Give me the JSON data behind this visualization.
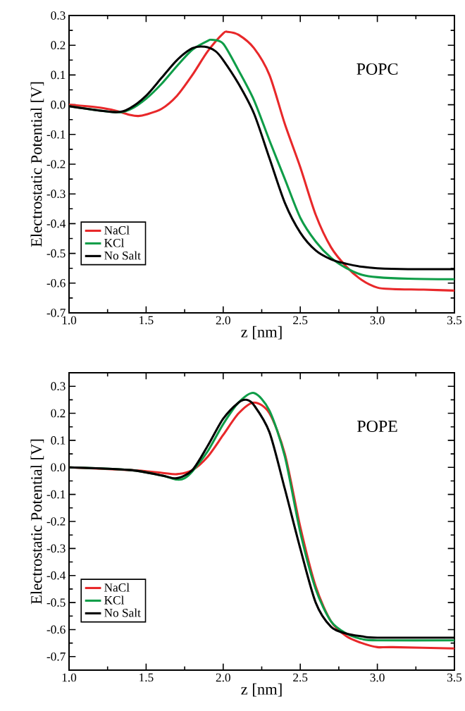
{
  "chart_data": [
    {
      "type": "line",
      "xlabel": "z [nm]",
      "ylabel": "Electrostatic Potential [V]",
      "annotations": [
        "POPC"
      ],
      "legend": "bottom left",
      "xlim": [
        1.0,
        3.5
      ],
      "ylim": [
        -0.7,
        0.3
      ],
      "xticks": [
        {
          "value": 1.0,
          "label": "1.0"
        },
        {
          "value": 1.5,
          "label": "1.5"
        },
        {
          "value": 2.0,
          "label": "2.0"
        },
        {
          "value": 2.5,
          "label": "2.5"
        },
        {
          "value": 3.0,
          "label": "3.0"
        },
        {
          "value": 3.5,
          "label": "3.5"
        }
      ],
      "yticks": [
        {
          "value": -0.7,
          "label": "-0.7"
        },
        {
          "value": -0.6,
          "label": "-0.6"
        },
        {
          "value": -0.5,
          "label": "-0.5"
        },
        {
          "value": -0.4,
          "label": "-0.4"
        },
        {
          "value": -0.3,
          "label": "-0.3"
        },
        {
          "value": -0.2,
          "label": "-0.2"
        },
        {
          "value": -0.1,
          "label": "-0.1"
        },
        {
          "value": 0.0,
          "label": "0.0"
        },
        {
          "value": 0.1,
          "label": "0.1"
        },
        {
          "value": 0.2,
          "label": "0.2"
        },
        {
          "value": 0.3,
          "label": "0.3"
        }
      ],
      "series": [
        {
          "name": "NaCl",
          "color": "#e8282a",
          "x": [
            1.0,
            1.2,
            1.3,
            1.4,
            1.45,
            1.5,
            1.6,
            1.7,
            1.8,
            1.9,
            2.0,
            2.03,
            2.1,
            2.2,
            2.3,
            2.4,
            2.5,
            2.6,
            2.7,
            2.8,
            2.9,
            3.0,
            3.1,
            3.3,
            3.5
          ],
          "values": [
            0.0,
            -0.01,
            -0.02,
            -0.035,
            -0.038,
            -0.033,
            -0.014,
            0.03,
            0.1,
            0.18,
            0.24,
            0.245,
            0.235,
            0.19,
            0.1,
            -0.065,
            -0.21,
            -0.37,
            -0.48,
            -0.545,
            -0.59,
            -0.615,
            -0.62,
            -0.622,
            -0.625
          ]
        },
        {
          "name": "KCl",
          "color": "#0f9d48",
          "x": [
            1.0,
            1.3,
            1.4,
            1.5,
            1.6,
            1.7,
            1.8,
            1.9,
            1.93,
            2.0,
            2.1,
            2.2,
            2.3,
            2.4,
            2.5,
            2.6,
            2.7,
            2.8,
            2.9,
            3.0,
            3.2,
            3.5
          ],
          "values": [
            -0.005,
            -0.025,
            -0.015,
            0.02,
            0.07,
            0.13,
            0.185,
            0.215,
            0.218,
            0.205,
            0.115,
            0.015,
            -0.12,
            -0.25,
            -0.38,
            -0.46,
            -0.515,
            -0.55,
            -0.572,
            -0.58,
            -0.585,
            -0.587
          ]
        },
        {
          "name": "No Salt",
          "color": "#000000",
          "x": [
            1.0,
            1.3,
            1.4,
            1.5,
            1.6,
            1.7,
            1.8,
            1.88,
            1.95,
            2.0,
            2.1,
            2.2,
            2.3,
            2.4,
            2.5,
            2.6,
            2.7,
            2.8,
            2.9,
            3.0,
            3.2,
            3.5
          ],
          "values": [
            -0.005,
            -0.025,
            -0.01,
            0.03,
            0.09,
            0.15,
            0.19,
            0.195,
            0.18,
            0.15,
            0.07,
            -0.03,
            -0.18,
            -0.33,
            -0.43,
            -0.49,
            -0.52,
            -0.535,
            -0.545,
            -0.55,
            -0.553,
            -0.553
          ]
        }
      ]
    },
    {
      "type": "line",
      "xlabel": "z [nm]",
      "ylabel": "Electrostatic Potential [V]",
      "annotations": [
        "POPE"
      ],
      "legend": "bottom left",
      "xlim": [
        1.0,
        3.5
      ],
      "ylim": [
        -0.75,
        0.35
      ],
      "xticks": [
        {
          "value": 1.0,
          "label": "1.0"
        },
        {
          "value": 1.5,
          "label": "1.5"
        },
        {
          "value": 2.0,
          "label": "2.0"
        },
        {
          "value": 2.5,
          "label": "2.5"
        },
        {
          "value": 3.0,
          "label": "3.0"
        },
        {
          "value": 3.5,
          "label": "3.5"
        }
      ],
      "yticks": [
        {
          "value": -0.7,
          "label": "-0.7"
        },
        {
          "value": -0.6,
          "label": "-0.6"
        },
        {
          "value": -0.5,
          "label": "-0.5"
        },
        {
          "value": -0.4,
          "label": "-0.4"
        },
        {
          "value": -0.3,
          "label": "-0.3"
        },
        {
          "value": -0.2,
          "label": "-0.2"
        },
        {
          "value": -0.1,
          "label": "-0.1"
        },
        {
          "value": 0.0,
          "label": "0.0"
        },
        {
          "value": 0.1,
          "label": "0.1"
        },
        {
          "value": 0.2,
          "label": "0.2"
        },
        {
          "value": 0.3,
          "label": "0.3"
        }
      ],
      "series": [
        {
          "name": "NaCl",
          "color": "#e8282a",
          "x": [
            1.0,
            1.4,
            1.6,
            1.7,
            1.8,
            1.9,
            2.0,
            2.1,
            2.2,
            2.3,
            2.4,
            2.5,
            2.6,
            2.7,
            2.8,
            2.9,
            3.0,
            3.1,
            3.5
          ],
          "values": [
            0.0,
            -0.01,
            -0.02,
            -0.025,
            -0.01,
            0.04,
            0.12,
            0.2,
            0.24,
            0.2,
            0.05,
            -0.22,
            -0.44,
            -0.57,
            -0.625,
            -0.65,
            -0.665,
            -0.665,
            -0.67
          ]
        },
        {
          "name": "KCl",
          "color": "#0f9d48",
          "x": [
            1.0,
            1.4,
            1.6,
            1.7,
            1.75,
            1.8,
            1.9,
            2.0,
            2.1,
            2.2,
            2.3,
            2.4,
            2.5,
            2.6,
            2.7,
            2.8,
            2.9,
            3.0,
            3.5
          ],
          "values": [
            0.0,
            -0.01,
            -0.03,
            -0.045,
            -0.04,
            -0.015,
            0.06,
            0.16,
            0.24,
            0.275,
            0.21,
            0.04,
            -0.24,
            -0.45,
            -0.57,
            -0.615,
            -0.635,
            -0.64,
            -0.64
          ]
        },
        {
          "name": "No Salt",
          "color": "#000000",
          "x": [
            1.0,
            1.4,
            1.6,
            1.7,
            1.8,
            1.9,
            2.0,
            2.1,
            2.15,
            2.2,
            2.3,
            2.4,
            2.5,
            2.6,
            2.7,
            2.8,
            2.9,
            3.0,
            3.5
          ],
          "values": [
            0.0,
            -0.01,
            -0.03,
            -0.04,
            -0.01,
            0.08,
            0.18,
            0.24,
            0.25,
            0.23,
            0.13,
            -0.08,
            -0.3,
            -0.5,
            -0.59,
            -0.615,
            -0.625,
            -0.63,
            -0.63
          ]
        }
      ]
    }
  ]
}
